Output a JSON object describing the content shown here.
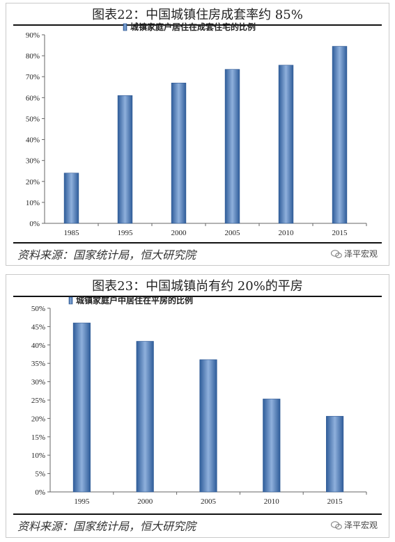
{
  "charts": [
    {
      "title": "图表22：中国城镇住房成套率约 85%",
      "source": "资料来源：国家统计局，恒大研究院",
      "watermark": "泽平宏观",
      "chart_data": {
        "type": "bar",
        "legend": "城镇家庭户居住在成套住宅的比例",
        "legend_position": "top-center",
        "categories": [
          "1985",
          "1995",
          "2000",
          "2005",
          "2010",
          "2015"
        ],
        "values": [
          24,
          61,
          67,
          73.5,
          75.5,
          84.5
        ],
        "ylim": [
          0,
          90
        ],
        "yticks": [
          0,
          10,
          20,
          30,
          40,
          50,
          60,
          70,
          80,
          90
        ],
        "ytick_labels": [
          "0%",
          "10%",
          "20%",
          "30%",
          "40%",
          "50%",
          "60%",
          "70%",
          "80%",
          "90%"
        ],
        "grid": false,
        "bar_color": "#4f81bd"
      }
    },
    {
      "title": "图表23：中国城镇尚有约 20%的平房",
      "source": "资料来源：国家统计局，恒大研究院",
      "watermark": "泽平宏观",
      "chart_data": {
        "type": "bar",
        "legend": "城镇家庭户中居住在平房的比例",
        "legend_position": "top-left",
        "categories": [
          "1995",
          "2000",
          "2005",
          "2010",
          "2015"
        ],
        "values": [
          46,
          41,
          36,
          25.3,
          20.6
        ],
        "ylim": [
          0,
          50
        ],
        "yticks": [
          0,
          5,
          10,
          15,
          20,
          25,
          30,
          35,
          40,
          45,
          50
        ],
        "ytick_labels": [
          "0%",
          "5%",
          "10%",
          "15%",
          "20%",
          "25%",
          "30%",
          "35%",
          "40%",
          "45%",
          "50%"
        ],
        "grid": false,
        "bar_color": "#4f81bd"
      }
    }
  ]
}
